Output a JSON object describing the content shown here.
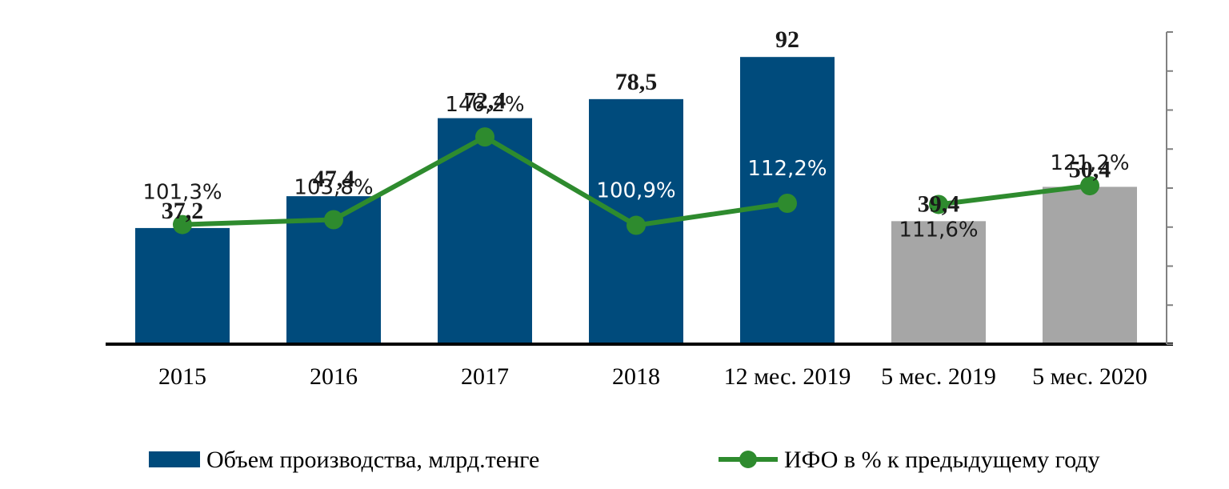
{
  "chart_data": {
    "type": "bar",
    "categories": [
      "2015",
      "2016",
      "2017",
      "2018",
      "12 мес. 2019",
      "5 мес. 2019",
      "5 мес. 2020"
    ],
    "series": [
      {
        "name": "Объем производства, млрд.тенге",
        "kind": "bar",
        "values": [
          37.2,
          47.4,
          72.4,
          78.5,
          92,
          39.4,
          50.4
        ],
        "labels": [
          "37,2",
          "47,4",
          "72,4",
          "78,5",
          "92",
          "39,4",
          "50,4"
        ],
        "colors": [
          "#004b7c",
          "#004b7c",
          "#004b7c",
          "#004b7c",
          "#004b7c",
          "#a6a6a6",
          "#a6a6a6"
        ]
      },
      {
        "name": "ИФО в % к предыдущему году",
        "kind": "line",
        "values": [
          101.3,
          103.8,
          146.2,
          100.9,
          112.2,
          111.6,
          121.2
        ],
        "labels": [
          "101,3%",
          "103,8%",
          "146,2%",
          "100,9%",
          "112,2%",
          "111,6%",
          "121,2%"
        ],
        "color": "#2e8b2e"
      }
    ],
    "ylim": [
      0,
      100
    ],
    "y2lim": [
      40,
      200
    ],
    "legend_position": "bottom",
    "grid": false
  }
}
